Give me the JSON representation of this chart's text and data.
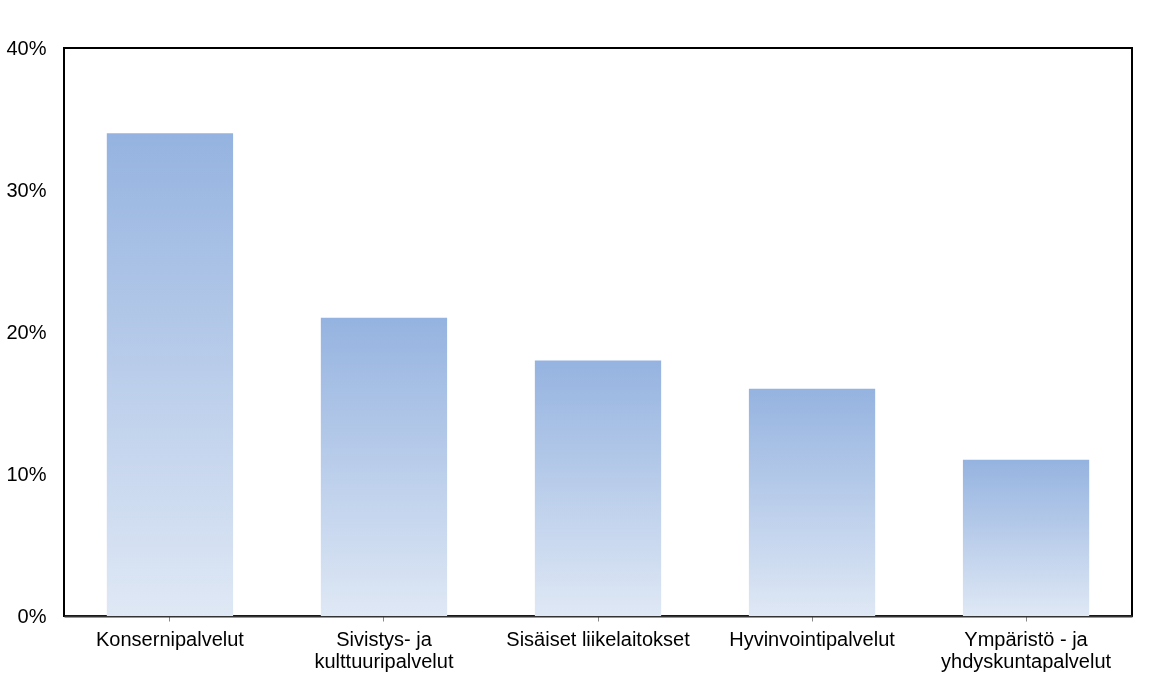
{
  "chart_data": {
    "type": "bar",
    "categories": [
      "Konsernipalvelut",
      "Sivistys- ja kulttuuripalvelut",
      "Sisäiset liikelaitokset",
      "Hyvinvointipalvelut",
      "Ympäristö - ja yhdyskuntapalvelut"
    ],
    "values": [
      34,
      21,
      18,
      16,
      11
    ],
    "color": "#95b3e0",
    "ylim": [
      0,
      40
    ],
    "yticks": [
      {
        "value": 0,
        "label": "0%"
      },
      {
        "value": 10,
        "label": "10%"
      },
      {
        "value": 20,
        "label": "20%"
      },
      {
        "value": 30,
        "label": "30%"
      },
      {
        "value": 40,
        "label": "40%"
      }
    ],
    "grid": false
  }
}
